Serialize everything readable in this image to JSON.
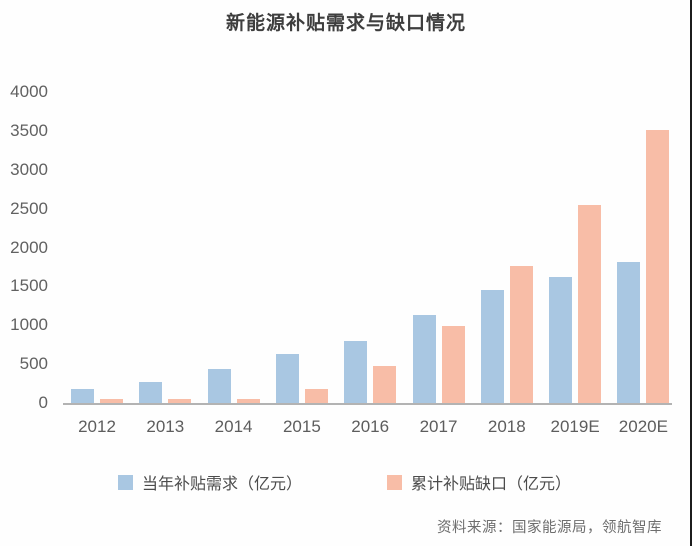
{
  "title": "新能源补贴需求与缺口情况",
  "source": "资料来源：国家能源局，领航智库",
  "colors": {
    "demand_bar": "#a9c7e2",
    "gap_bar": "#f8bda7",
    "axis_line": "#b3b3b3",
    "title_text": "#3e3e3e",
    "tick_text": "#5d5d5d",
    "right_edge": "#1c1c1c"
  },
  "chart_data": {
    "type": "bar",
    "title": "新能源补贴需求与缺口情况",
    "categories": [
      "2012",
      "2013",
      "2014",
      "2015",
      "2016",
      "2017",
      "2018",
      "2019E",
      "2020E"
    ],
    "series": [
      {
        "name": "当年补贴需求（亿元）",
        "color": "#a9c7e2",
        "values": [
          180,
          270,
          440,
          630,
          800,
          1130,
          1460,
          1620,
          1810
        ]
      },
      {
        "name": "累计补贴缺口（亿元）",
        "color": "#f8bda7",
        "values": [
          50,
          50,
          50,
          180,
          480,
          990,
          1760,
          2550,
          3510
        ]
      }
    ],
    "xlabel": "",
    "ylabel": "",
    "units": "亿元",
    "ylim": [
      0,
      4000
    ],
    "ytick_step": 500,
    "yticks": [
      0,
      500,
      1000,
      1500,
      2000,
      2500,
      3000,
      3500,
      4000
    ],
    "grid": false,
    "legend_position": "bottom"
  }
}
